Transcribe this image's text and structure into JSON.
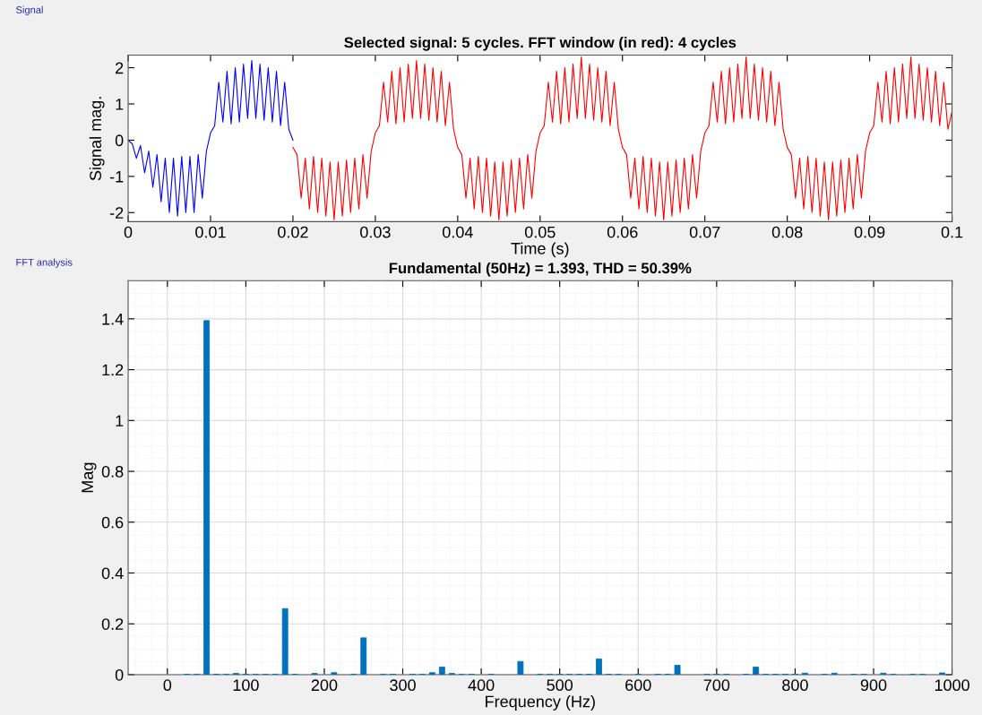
{
  "chart_data": [
    {
      "type": "line",
      "title": "Selected signal: 5 cycles. FFT window (in red): 4 cycles",
      "xlabel": "Time (s)",
      "ylabel": "Signal mag.",
      "annotations": [
        "Signal"
      ],
      "series": [
        {
          "color": "#0000ff",
          "x": [
            0,
            0.0005,
            0.001,
            0.0015,
            0.002,
            0.0025,
            0.003,
            0.0035,
            0.004,
            0.0045,
            0.005,
            0.0055,
            0.006,
            0.0065,
            0.007,
            0.0075,
            0.008,
            0.0085,
            0.009,
            0.0095,
            0.01,
            0.0105,
            0.011,
            0.0115,
            0.012,
            0.0125,
            0.013,
            0.0135,
            0.014,
            0.0145,
            0.015,
            0.0155,
            0.016,
            0.0165,
            0.017,
            0.0175,
            0.018,
            0.0185,
            0.019,
            0.0195,
            0.02
          ],
          "values": [
            0,
            -0.1,
            -0.5,
            -0.15,
            -0.9,
            -0.3,
            -1.3,
            -0.4,
            -1.7,
            -0.5,
            -2.0,
            -0.5,
            -2.1,
            -0.45,
            -2.0,
            -0.45,
            -2.0,
            -0.4,
            -1.6,
            -0.3,
            0.2,
            0.4,
            1.6,
            0.5,
            1.9,
            0.45,
            2.0,
            0.5,
            2.1,
            0.6,
            2.2,
            0.6,
            2.1,
            0.55,
            2.0,
            0.5,
            1.9,
            0.4,
            1.6,
            0.3,
            0
          ]
        },
        {
          "color": "#ff0000",
          "x": [
            0.02,
            0.0205,
            0.021,
            0.0215,
            0.022,
            0.0225,
            0.023,
            0.0235,
            0.024,
            0.0245,
            0.025,
            0.0255,
            0.026,
            0.0265,
            0.027,
            0.0275,
            0.028,
            0.0285,
            0.029,
            0.0295,
            0.03,
            0.0305,
            0.031,
            0.0315,
            0.032,
            0.0325,
            0.033,
            0.0335,
            0.034,
            0.0345,
            0.035,
            0.0355,
            0.036,
            0.0365,
            0.037,
            0.0375,
            0.038,
            0.0385,
            0.039,
            0.0395,
            0.04,
            0.0405,
            0.041,
            0.0415,
            0.042,
            0.0425,
            0.043,
            0.0435,
            0.044,
            0.0445,
            0.045,
            0.0455,
            0.046,
            0.0465,
            0.047,
            0.0475,
            0.048,
            0.0485,
            0.049,
            0.0495,
            0.05,
            0.0505,
            0.051,
            0.0515,
            0.052,
            0.0525,
            0.053,
            0.0535,
            0.054,
            0.0545,
            0.055,
            0.0555,
            0.056,
            0.0565,
            0.057,
            0.0575,
            0.058,
            0.0585,
            0.059,
            0.0595,
            0.06,
            0.0605,
            0.061,
            0.0615,
            0.062,
            0.0625,
            0.063,
            0.0635,
            0.064,
            0.0645,
            0.065,
            0.0655,
            0.066,
            0.0665,
            0.067,
            0.0675,
            0.068,
            0.0685,
            0.069,
            0.0695,
            0.07,
            0.0705,
            0.071,
            0.0715,
            0.072,
            0.0725,
            0.073,
            0.0735,
            0.074,
            0.0745,
            0.075,
            0.0755,
            0.076,
            0.0765,
            0.077,
            0.0775,
            0.078,
            0.0785,
            0.079,
            0.0795,
            0.08,
            0.0805,
            0.081,
            0.0815,
            0.082,
            0.0825,
            0.083,
            0.0835,
            0.084,
            0.0845,
            0.085,
            0.0855,
            0.086,
            0.0865,
            0.087,
            0.0875,
            0.088,
            0.0885,
            0.089,
            0.0895,
            0.09,
            0.0905,
            0.091,
            0.0915,
            0.092,
            0.0925,
            0.093,
            0.0935,
            0.094,
            0.0945,
            0.095,
            0.0955,
            0.096,
            0.0965,
            0.097,
            0.0975,
            0.098,
            0.0985,
            0.099,
            0.0995,
            0.1
          ],
          "values": [
            -0.2,
            -0.4,
            -1.6,
            -0.5,
            -1.9,
            -0.45,
            -2.0,
            -0.5,
            -2.1,
            -0.6,
            -2.2,
            -0.6,
            -2.1,
            -0.55,
            -2.0,
            -0.5,
            -1.9,
            -0.4,
            -1.6,
            -0.3,
            0.2,
            0.4,
            1.6,
            0.5,
            1.9,
            0.45,
            2.0,
            0.5,
            2.1,
            0.6,
            2.2,
            0.6,
            2.1,
            0.55,
            2.0,
            0.5,
            1.9,
            0.4,
            1.6,
            0.3,
            -0.2,
            -0.4,
            -1.6,
            -0.5,
            -1.9,
            -0.45,
            -2.0,
            -0.5,
            -2.1,
            -0.6,
            -2.2,
            -0.6,
            -2.1,
            -0.55,
            -2.0,
            -0.5,
            -1.9,
            -0.4,
            -1.6,
            -0.3,
            0.2,
            0.4,
            1.6,
            0.5,
            1.9,
            0.45,
            2.0,
            0.5,
            2.1,
            0.6,
            2.3,
            0.6,
            2.1,
            0.55,
            2.0,
            0.5,
            1.9,
            0.4,
            1.6,
            0.3,
            -0.2,
            -0.4,
            -1.6,
            -0.5,
            -1.9,
            -0.45,
            -2.0,
            -0.5,
            -2.1,
            -0.6,
            -2.2,
            -0.6,
            -2.1,
            -0.55,
            -2.0,
            -0.5,
            -1.9,
            -0.4,
            -1.6,
            -0.3,
            0.2,
            0.4,
            1.6,
            0.5,
            1.9,
            0.45,
            2.0,
            0.5,
            2.1,
            0.6,
            2.3,
            0.6,
            2.1,
            0.55,
            2.0,
            0.5,
            1.9,
            0.4,
            1.6,
            0.3,
            -0.2,
            -0.4,
            -1.6,
            -0.5,
            -1.9,
            -0.45,
            -2.0,
            -0.5,
            -2.1,
            -0.6,
            -2.2,
            -0.6,
            -2.1,
            -0.55,
            -2.0,
            -0.5,
            -1.9,
            -0.4,
            -1.6,
            -0.3,
            0.2,
            0.4,
            1.6,
            0.5,
            1.9,
            0.45,
            2.0,
            0.5,
            2.1,
            0.6,
            2.3,
            0.6,
            2.1,
            0.55,
            2.0,
            0.5,
            1.9,
            0.4,
            1.6,
            0.3,
            0.8
          ]
        }
      ],
      "xlim": [
        0,
        0.1
      ],
      "xticks": [
        0,
        0.01,
        0.02,
        0.03,
        0.04,
        0.05,
        0.06,
        0.07,
        0.08,
        0.09,
        0.1
      ],
      "ylim": [
        -2.25,
        2.35
      ],
      "yticks": [
        -2,
        -1,
        0,
        1,
        2
      ],
      "grid": false
    },
    {
      "type": "bar",
      "title": "Fundamental (50Hz) = 1.393, THD = 50.39%",
      "xlabel": "Frequency (Hz)",
      "ylabel": "Mag",
      "annotations": [
        "FFT analysis"
      ],
      "x": [
        25,
        37.5,
        50,
        62.5,
        75,
        87.5,
        100,
        112.5,
        125,
        137.5,
        150,
        162.5,
        187.5,
        212.5,
        237.5,
        250,
        275,
        287.5,
        312.5,
        325,
        337.5,
        350,
        362.5,
        375,
        387.5,
        412.5,
        450,
        475,
        487.5,
        500,
        512.5,
        525,
        537.5,
        550,
        562.5,
        575,
        600,
        625,
        637.5,
        650,
        687.5,
        700,
        712.5,
        737.5,
        750,
        762.5,
        775,
        787.5,
        800,
        812.5,
        837.5,
        850,
        875,
        887.5,
        912.5,
        925,
        950,
        962.5,
        987.5
      ],
      "values": [
        0.002,
        0.002,
        1.393,
        0.002,
        0.002,
        0.005,
        0.002,
        0.002,
        0.002,
        0.002,
        0.26,
        0.002,
        0.005,
        0.008,
        0.002,
        0.145,
        0.002,
        0.002,
        0.002,
        0.002,
        0.008,
        0.03,
        0.005,
        0.002,
        0.002,
        0.002,
        0.052,
        0.002,
        0.002,
        0.002,
        0.002,
        0.002,
        0.002,
        0.062,
        0.002,
        0.002,
        0.002,
        0.002,
        0.002,
        0.037,
        0.002,
        0.002,
        0.002,
        0.002,
        0.03,
        0.002,
        0.002,
        0.002,
        0.002,
        0.006,
        0.002,
        0.006,
        0.002,
        0.002,
        0.006,
        0.002,
        0.002,
        0.002,
        0.007
      ],
      "color": "#0072bd",
      "xlim": [
        -50,
        1000
      ],
      "xticks": [
        0,
        100,
        200,
        300,
        400,
        500,
        600,
        700,
        800,
        900,
        1000
      ],
      "ylim": [
        0,
        1.55
      ],
      "yticks": [
        0,
        0.2,
        0.4,
        0.6,
        0.8,
        1,
        1.2,
        1.4
      ],
      "grid": true
    }
  ]
}
